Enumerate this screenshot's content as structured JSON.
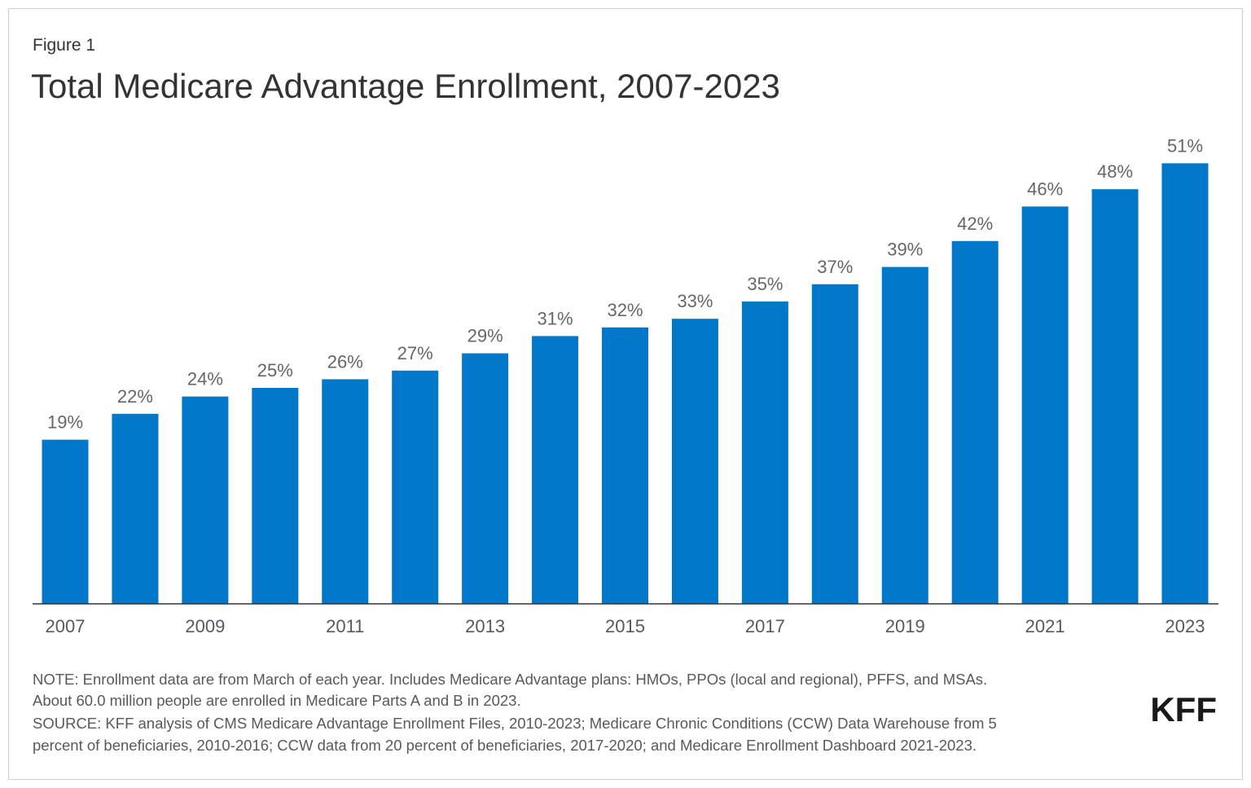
{
  "chart_data": {
    "type": "bar",
    "figure_label": "Figure 1",
    "title": "Total Medicare Advantage Enrollment, 2007-2023",
    "categories": [
      "2007",
      null,
      "2009",
      null,
      "2011",
      null,
      "2013",
      null,
      "2015",
      null,
      "2017",
      null,
      "2019",
      null,
      "2021",
      null,
      "2023"
    ],
    "values": [
      19,
      22,
      24,
      25,
      26,
      27,
      29,
      31,
      32,
      33,
      35,
      37,
      39,
      42,
      46,
      48,
      51
    ],
    "value_labels": [
      "19%",
      "22%",
      "24%",
      "25%",
      "26%",
      "27%",
      "29%",
      "31%",
      "32%",
      "33%",
      "35%",
      "37%",
      "39%",
      "42%",
      "46%",
      "48%",
      "51%"
    ],
    "color": "#0077c8",
    "notes": [
      "NOTE: Enrollment data are from March of each year. Includes Medicare Advantage plans: HMOs, PPOs (local and regional), PFFS, and MSAs.",
      "About 60.0 million people are enrolled in Medicare Parts A and B in 2023."
    ],
    "source": [
      "SOURCE: KFF analysis of CMS Medicare Advantage Enrollment Files, 2010-2023; Medicare Chronic Conditions (CCW) Data Warehouse from 5",
      "percent of beneficiaries, 2010-2016; CCW data from 20 percent of beneficiaries, 2017-2020; and Medicare Enrollment Dashboard 2021-2023."
    ],
    "logo": "KFF"
  }
}
